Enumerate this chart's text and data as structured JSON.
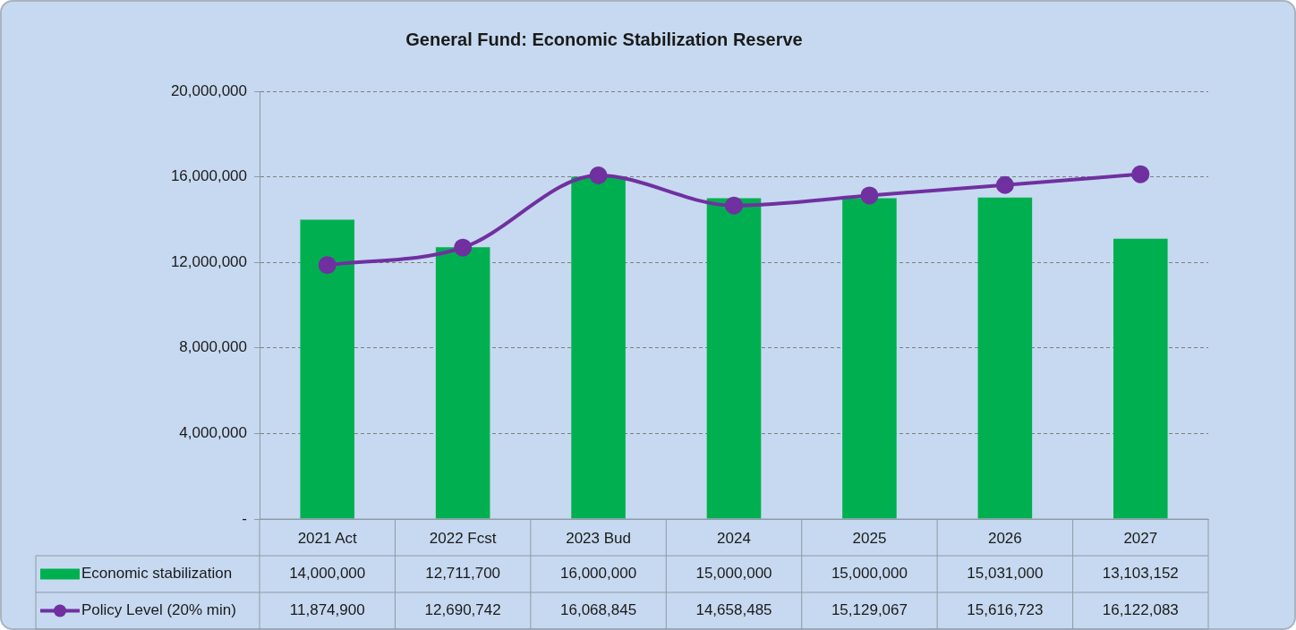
{
  "chart_data": {
    "type": "bar",
    "title": "General Fund: Economic Stabilization Reserve",
    "categories": [
      "2021 Act",
      "2022 Fcst",
      "2023 Bud",
      "2024",
      "2025",
      "2026",
      "2027"
    ],
    "series": [
      {
        "name": "Economic stabilization",
        "color": "#00b050",
        "values": [
          14000000,
          12711700,
          16000000,
          15000000,
          15000000,
          15031000,
          13103152
        ],
        "value_labels": [
          "14,000,000",
          "12,711,700",
          "16,000,000",
          "15,000,000",
          "15,000,000",
          "15,031,000",
          "13,103,152"
        ]
      },
      {
        "name": "Policy Level (20% min)",
        "type": "line",
        "color": "#7030a0",
        "marker": "circle",
        "values": [
          11874900,
          12690742,
          16068845,
          14658485,
          15129067,
          15616723,
          16122083
        ],
        "value_labels": [
          "11,874,900",
          "12,690,742",
          "16,068,845",
          "14,658,485",
          "15,129,067",
          "15,616,723",
          "16,122,083"
        ]
      }
    ],
    "ylim": [
      0,
      20000000
    ],
    "yticks": [
      {
        "value": 0,
        "label": "-"
      },
      {
        "value": 4000000,
        "label": "4,000,000"
      },
      {
        "value": 8000000,
        "label": "8,000,000"
      },
      {
        "value": 12000000,
        "label": "12,000,000"
      },
      {
        "value": 16000000,
        "label": "16,000,000"
      },
      {
        "value": 20000000,
        "label": "20,000,000"
      }
    ],
    "grid": "y",
    "legend": "bottom"
  }
}
